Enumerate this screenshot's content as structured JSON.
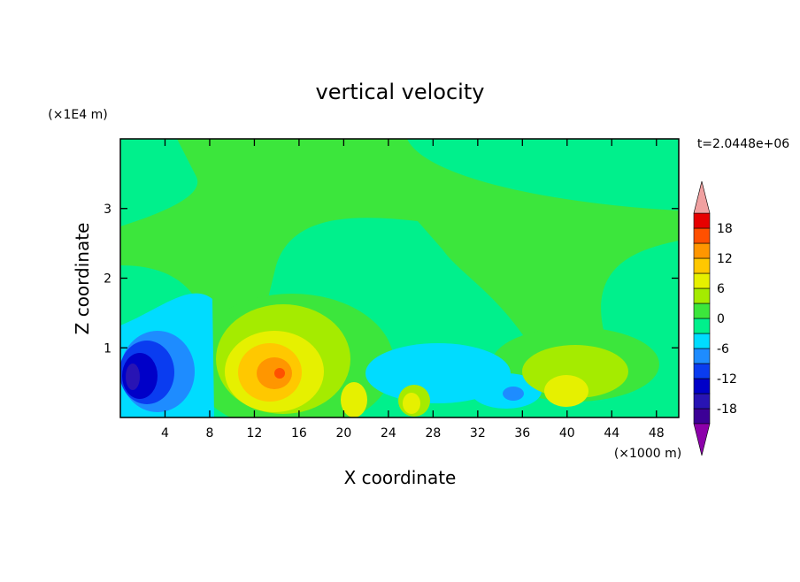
{
  "chart_data": {
    "type": "contour",
    "title": "vertical velocity",
    "x_label": "X coordinate",
    "y_label": "Z coordinate",
    "x_unit_label": "(×1000 m)",
    "y_unit_label": "(×1E4 m)",
    "time_label": "t=2.0448e+06",
    "xlim": [
      0,
      50
    ],
    "xticks": [
      4,
      8,
      12,
      16,
      20,
      24,
      28,
      32,
      36,
      40,
      44,
      48
    ],
    "ylim": [
      0,
      4
    ],
    "yticks": [
      1,
      2,
      3
    ],
    "levels": [
      -21,
      -18,
      -15,
      -12,
      -9,
      -6,
      -3,
      0,
      3,
      6,
      9,
      12,
      15,
      18,
      21
    ],
    "colors": [
      "#3c0096",
      "#2814b4",
      "#0000c8",
      "#0a3cf0",
      "#1e8cff",
      "#00dcff",
      "#00f08c",
      "#3ce63c",
      "#a5eb00",
      "#e6f000",
      "#ffc800",
      "#ff9600",
      "#ff5000",
      "#e60000"
    ],
    "under_color": "#8c00aa",
    "over_color": "#f0a0a0",
    "colorbar_ticks": [
      -18,
      -12,
      -6,
      0,
      6,
      12,
      18
    ]
  }
}
